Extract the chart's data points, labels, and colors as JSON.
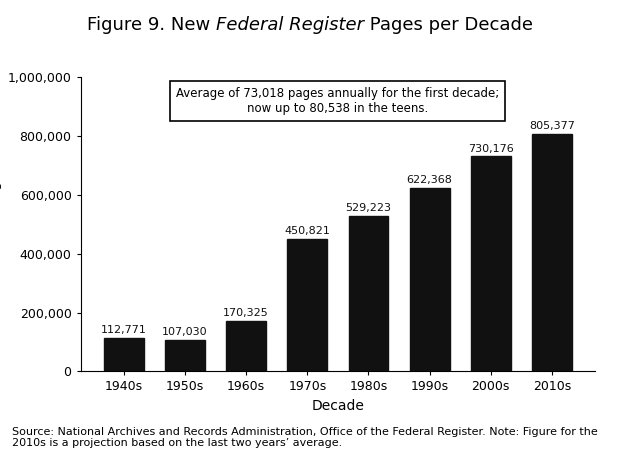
{
  "categories": [
    "1940s",
    "1950s",
    "1960s",
    "1970s",
    "1980s",
    "1990s",
    "2000s",
    "2010s"
  ],
  "values": [
    112771,
    107030,
    170325,
    450821,
    529223,
    622368,
    730176,
    805377
  ],
  "bar_color": "#111111",
  "title_prefix": "Figure 9. New ",
  "title_italic": "Federal Register",
  "title_suffix": " Pages per Decade",
  "xlabel": "Decade",
  "ylabel": "Number of Pages",
  "ylim": [
    0,
    1000000
  ],
  "yticks": [
    0,
    200000,
    400000,
    600000,
    800000,
    1000000
  ],
  "ytick_labels": [
    "0",
    "200,000",
    "400,000",
    "600,000",
    "800,000",
    "1,000,000"
  ],
  "annotation_line1": "Average of 73,018 pages annually for the first decade;",
  "annotation_line2": "now up to 80,538 in the teens.",
  "source_text": "Source: National Archives and Records Administration, Office of the Federal Register. Note: Figure for the\n2010s is a projection based on the last two years’ average.",
  "background_color": "#ffffff",
  "value_labels": [
    "112,771",
    "107,030",
    "170,325",
    "450,821",
    "529,223",
    "622,368",
    "730,176",
    "805,377"
  ],
  "title_fontsize": 13,
  "axis_fontsize": 9,
  "label_fontsize": 8,
  "source_fontsize": 8
}
